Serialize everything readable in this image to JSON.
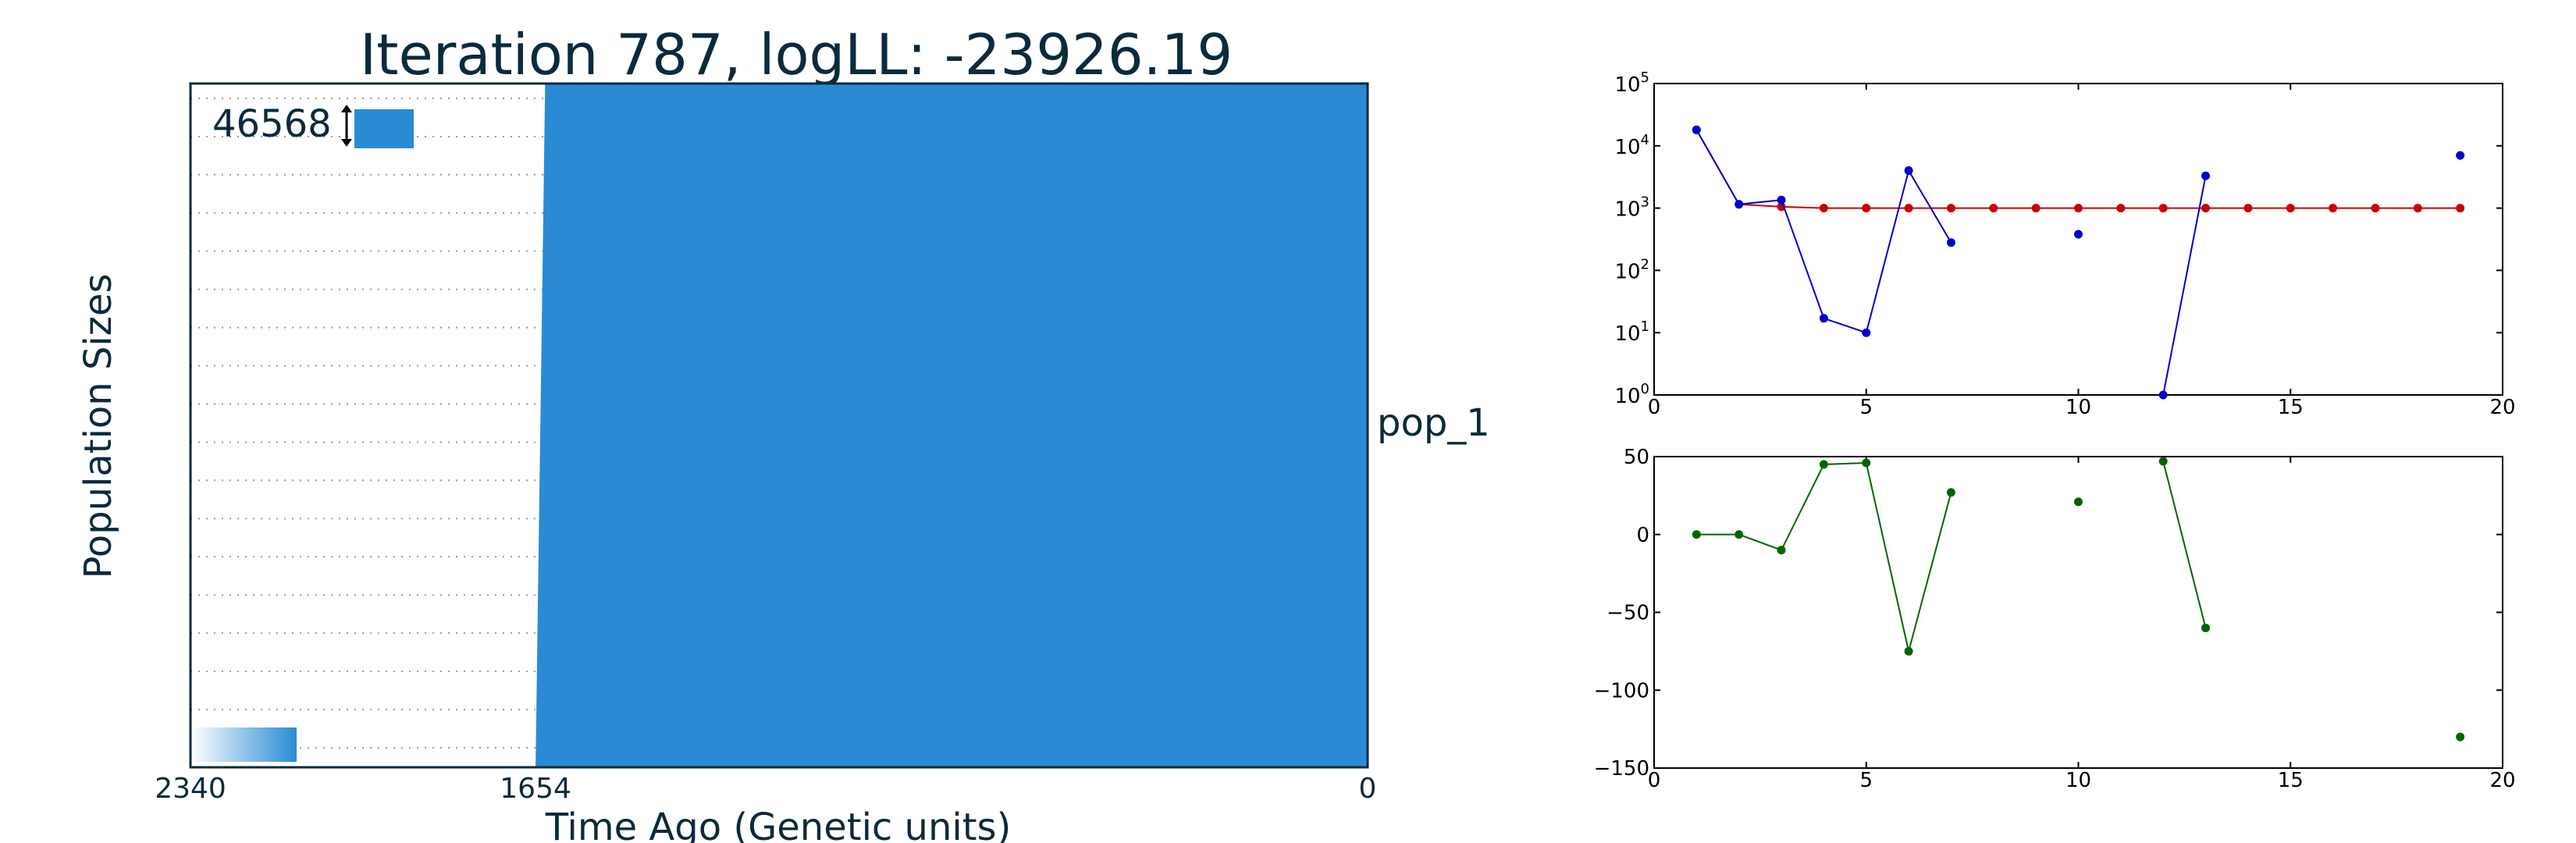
{
  "figure": {
    "title": "Iteration 787, logLL:  -23926.19"
  },
  "chart_data": [
    {
      "type": "area",
      "title": "Iteration 787, logLL:  -23926.19",
      "xlabel": "Time Ago (Genetic units)",
      "ylabel": "Population Sizes",
      "x_tick_labels": [
        "2340",
        "1654",
        "0"
      ],
      "scale_bar_label": "46568",
      "series": [
        {
          "name": "pop_1",
          "color": "#2a8bd4",
          "time_points": [
            2340,
            1654,
            0
          ],
          "note_shape": "block starts at about 1654 (top edge ~1635) and spans to 0"
        }
      ],
      "gridlines": "dotted horizontal lines in left region",
      "ylim": [
        0,
        18.5
      ],
      "xlim": [
        2340,
        0
      ]
    },
    {
      "type": "line",
      "y_scale": "log",
      "xlim": [
        0,
        20
      ],
      "ylim": [
        1,
        100000
      ],
      "x_ticks": [
        "0",
        "5",
        "10",
        "15",
        "20"
      ],
      "y_tick_exponents": [
        "0",
        "1",
        "2",
        "3",
        "4",
        "5"
      ],
      "y_tick_base": "10",
      "series": [
        {
          "color": "#cc0000",
          "points": [
            [
              1,
              18000
            ],
            [
              2,
              1150
            ],
            [
              3,
              1050
            ],
            [
              4,
              1000
            ],
            [
              5,
              1000
            ],
            [
              6,
              1000
            ],
            [
              7,
              1000
            ],
            [
              8,
              1000
            ],
            [
              9,
              1000
            ],
            [
              10,
              1000
            ],
            [
              11,
              1000
            ],
            [
              12,
              1000
            ],
            [
              13,
              1000
            ],
            [
              14,
              1000
            ],
            [
              15,
              1000
            ],
            [
              16,
              1000
            ],
            [
              17,
              1000
            ],
            [
              18,
              1000
            ],
            [
              19,
              1000
            ]
          ]
        },
        {
          "color": "#0000cc",
          "points": [
            [
              1,
              18000
            ],
            [
              2,
              1150
            ],
            [
              3,
              1350
            ],
            [
              4,
              17
            ],
            [
              5,
              10
            ],
            [
              6,
              4000
            ],
            [
              7,
              280
            ],
            [
              10,
              380
            ],
            [
              12,
              1
            ],
            [
              13,
              3300
            ],
            [
              19,
              7000
            ]
          ],
          "segments": [
            [
              1,
              2,
              3,
              4,
              5,
              6,
              7
            ],
            [
              12,
              13
            ]
          ]
        }
      ]
    },
    {
      "type": "line",
      "xlim": [
        0,
        20
      ],
      "ylim": [
        -150,
        50
      ],
      "x_ticks": [
        "0",
        "5",
        "10",
        "15",
        "20"
      ],
      "y_ticks": [
        "50",
        "0",
        "−50",
        "−100",
        "−150"
      ],
      "series": [
        {
          "color": "#006600",
          "points": [
            [
              1,
              0
            ],
            [
              2,
              0
            ],
            [
              3,
              -10
            ],
            [
              4,
              45
            ],
            [
              5,
              46
            ],
            [
              6,
              -75
            ],
            [
              7,
              27
            ],
            [
              10,
              21
            ],
            [
              12,
              47
            ],
            [
              13,
              -60
            ],
            [
              19,
              -130
            ]
          ],
          "segments": [
            [
              1,
              2,
              3,
              4,
              5,
              6,
              7
            ],
            [
              12,
              13
            ]
          ]
        }
      ]
    }
  ]
}
